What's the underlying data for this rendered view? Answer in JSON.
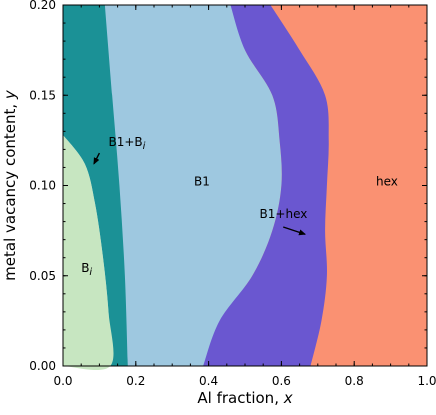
{
  "chart_data": {
    "type": "area",
    "title": "",
    "xlabel": "Al fraction, ",
    "xlabel_var": "x",
    "ylabel": "metal vacancy content, ",
    "ylabel_var": "y",
    "xlim": [
      0.0,
      1.0
    ],
    "ylim": [
      0.0,
      0.2
    ],
    "x_ticks": [
      0.0,
      0.2,
      0.4,
      0.6,
      0.8,
      1.0
    ],
    "x_tick_labels": [
      "0.0",
      "0.2",
      "0.4",
      "0.6",
      "0.8",
      "1.0"
    ],
    "y_ticks": [
      0.0,
      0.05,
      0.1,
      0.15,
      0.2
    ],
    "y_tick_labels": [
      "0.00",
      "0.05",
      "0.10",
      "0.15",
      "0.20"
    ],
    "grid": false,
    "regions": [
      {
        "label": "Bi",
        "base": "B",
        "sub": "i",
        "color": "#c7e6c1",
        "label_at": [
          0.05,
          0.052
        ],
        "boundary": [
          [
            0.0,
            0.0
          ],
          [
            0.13,
            0.0
          ],
          [
            0.125,
            0.03
          ],
          [
            0.11,
            0.06
          ],
          [
            0.088,
            0.09
          ],
          [
            0.06,
            0.112
          ],
          [
            0.0,
            0.128
          ]
        ]
      },
      {
        "label": "B1+Bi",
        "base": "B1+B",
        "sub": "i",
        "color": "#1b9196",
        "label_at": [
          0.125,
          0.122
        ],
        "arrow": {
          "from": [
            0.1,
            0.118
          ],
          "to": [
            0.085,
            0.112
          ]
        },
        "left_edge": [
          [
            0.13,
            0.0
          ],
          [
            0.125,
            0.03
          ],
          [
            0.11,
            0.06
          ],
          [
            0.088,
            0.09
          ],
          [
            0.06,
            0.112
          ],
          [
            0.0,
            0.128
          ]
        ],
        "right_edge": [
          [
            0.178,
            0.0
          ],
          [
            0.17,
            0.05
          ],
          [
            0.155,
            0.1
          ],
          [
            0.135,
            0.15
          ],
          [
            0.115,
            0.2
          ]
        ]
      },
      {
        "label": "B1",
        "color": "#9ec8e0",
        "label_at": [
          0.36,
          0.1
        ]
      },
      {
        "label": "B1+hex",
        "color": "#6a57d0",
        "label_at": [
          0.54,
          0.082
        ],
        "arrow": {
          "from": [
            0.605,
            0.077
          ],
          "to": [
            0.665,
            0.073
          ]
        },
        "left_edge": [
          [
            0.385,
            0.0
          ],
          [
            0.43,
            0.025
          ],
          [
            0.52,
            0.05
          ],
          [
            0.575,
            0.075
          ],
          [
            0.6,
            0.1
          ],
          [
            0.595,
            0.125
          ],
          [
            0.575,
            0.15
          ],
          [
            0.5,
            0.175
          ],
          [
            0.46,
            0.2
          ]
        ],
        "right_edge": [
          [
            0.68,
            0.0
          ],
          [
            0.71,
            0.025
          ],
          [
            0.725,
            0.05
          ],
          [
            0.72,
            0.075
          ],
          [
            0.725,
            0.1
          ],
          [
            0.73,
            0.125
          ],
          [
            0.72,
            0.15
          ],
          [
            0.65,
            0.175
          ],
          [
            0.57,
            0.2
          ]
        ]
      },
      {
        "label": "hex",
        "color": "#fa9172",
        "label_at": [
          0.86,
          0.1
        ]
      }
    ]
  }
}
